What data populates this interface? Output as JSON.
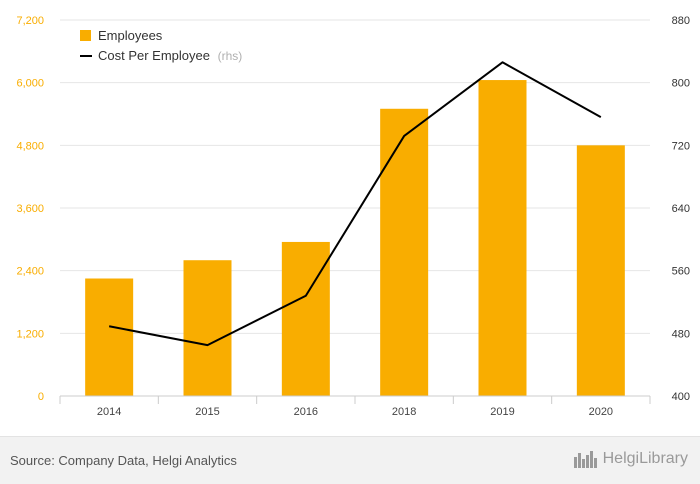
{
  "chart_data": {
    "type": "bar+line",
    "categories": [
      "2014",
      "2015",
      "2016",
      "2018",
      "2019",
      "2020"
    ],
    "series": [
      {
        "name": "Employees",
        "type": "bar",
        "axis": "left",
        "color": "#f9ad00",
        "values": [
          2250,
          2600,
          2950,
          5500,
          6050,
          4800
        ]
      },
      {
        "name": "Cost Per Employee",
        "name_suffix": "(rhs)",
        "type": "line",
        "axis": "right",
        "color": "#000000",
        "values": [
          489,
          465,
          528,
          732,
          826,
          756
        ]
      }
    ],
    "left_axis": {
      "min": 0,
      "max": 7200,
      "ticks": [
        "0",
        "1,200",
        "2,400",
        "3,600",
        "4,800",
        "6,000",
        "7,200"
      ],
      "tick_color": "#f9ad00"
    },
    "right_axis": {
      "min": 400,
      "max": 880,
      "ticks": [
        "400",
        "480",
        "560",
        "640",
        "720",
        "800",
        "880"
      ]
    },
    "grid": true,
    "legend_position": "top-left"
  },
  "footer": {
    "source": "Source: Company Data, Helgi Analytics",
    "brand_name": "HelgiLibrary"
  }
}
